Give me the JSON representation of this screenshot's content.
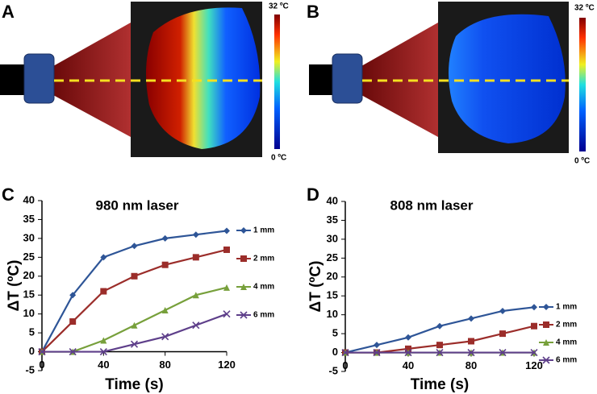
{
  "panels": [
    {
      "label": "A",
      "scale_max": "32 ºC",
      "scale_min": "0 ºC"
    },
    {
      "label": "B",
      "scale_max": "32 ºC",
      "scale_min": "0 ºC"
    }
  ],
  "chart_data": [
    {
      "type": "line",
      "panel_label": "C",
      "title": "980 nm laser",
      "x_label": "Time (s)",
      "y_label": "ΔT (ºC)",
      "x": [
        0,
        20,
        40,
        60,
        80,
        100,
        120
      ],
      "xlim": [
        0,
        120
      ],
      "xticks": [
        0,
        40,
        80,
        120
      ],
      "ylim": [
        -5,
        40
      ],
      "yticks": [
        -5,
        0,
        5,
        10,
        15,
        20,
        25,
        30,
        35,
        40
      ],
      "legend": "right",
      "series": [
        {
          "name": "1 mm",
          "color": "#2e5597",
          "marker": "diamond",
          "values": [
            0,
            15,
            25,
            28,
            30,
            31,
            32
          ]
        },
        {
          "name": "2 mm",
          "color": "#9b2d2a",
          "marker": "square",
          "values": [
            0,
            8,
            16,
            20,
            23,
            25,
            27
          ]
        },
        {
          "name": "4 mm",
          "color": "#77a03b",
          "marker": "triangle",
          "values": [
            0,
            0,
            3,
            7,
            11,
            15,
            17
          ]
        },
        {
          "name": "6 mm",
          "color": "#5e3f8a",
          "marker": "x",
          "values": [
            0,
            0,
            0,
            2,
            4,
            7,
            10
          ]
        }
      ]
    },
    {
      "type": "line",
      "panel_label": "D",
      "title": "808 nm laser",
      "x_label": "Time (s)",
      "y_label": "ΔT (ºC)",
      "x": [
        0,
        20,
        40,
        60,
        80,
        100,
        120
      ],
      "xlim": [
        0,
        120
      ],
      "xticks": [
        0,
        40,
        80,
        120
      ],
      "ylim": [
        -5,
        40
      ],
      "yticks": [
        -5,
        0,
        5,
        10,
        15,
        20,
        25,
        30,
        35,
        40
      ],
      "legend": "right",
      "series": [
        {
          "name": "1 mm",
          "color": "#2e5597",
          "marker": "diamond",
          "values": [
            0,
            2,
            4,
            7,
            9,
            11,
            12
          ]
        },
        {
          "name": "2 mm",
          "color": "#9b2d2a",
          "marker": "square",
          "values": [
            0,
            0,
            1,
            2,
            3,
            5,
            7
          ]
        },
        {
          "name": "4 mm",
          "color": "#77a03b",
          "marker": "triangle",
          "values": [
            0,
            0,
            0,
            0,
            0,
            0,
            0
          ]
        },
        {
          "name": "6 mm",
          "color": "#5e3f8a",
          "marker": "x",
          "values": [
            0,
            0,
            0,
            0,
            0,
            0,
            0
          ]
        }
      ]
    }
  ]
}
